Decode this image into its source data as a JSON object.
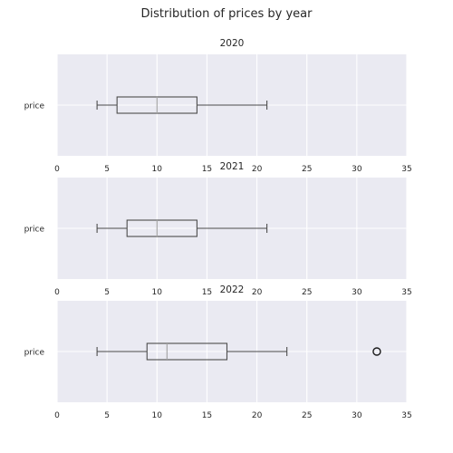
{
  "suptitle": "Distribution of prices by year",
  "colors": {
    "axes_bg": "#EAEAF2",
    "grid": "#FFFFFF",
    "box_edge": "#4C4C4C",
    "median": "#A0A0A0",
    "text": "#262626"
  },
  "chart_data": [
    {
      "type": "box",
      "title": "2020",
      "category_label": "price",
      "xlim": [
        0,
        35
      ],
      "xticks": [
        0,
        5,
        10,
        15,
        20,
        25,
        30,
        35
      ],
      "grid": true,
      "box": {
        "whisker_low": 4,
        "q1": 6,
        "median": 10,
        "q3": 14,
        "whisker_high": 21,
        "outliers": []
      }
    },
    {
      "type": "box",
      "title": "2021",
      "category_label": "price",
      "xlim": [
        0,
        35
      ],
      "xticks": [
        0,
        5,
        10,
        15,
        20,
        25,
        30,
        35
      ],
      "grid": true,
      "box": {
        "whisker_low": 4,
        "q1": 7,
        "median": 10,
        "q3": 14,
        "whisker_high": 21,
        "outliers": []
      }
    },
    {
      "type": "box",
      "title": "2022",
      "category_label": "price",
      "xlim": [
        0,
        35
      ],
      "xticks": [
        0,
        5,
        10,
        15,
        20,
        25,
        30,
        35
      ],
      "grid": true,
      "box": {
        "whisker_low": 4,
        "q1": 9,
        "median": 11,
        "q3": 17,
        "whisker_high": 23,
        "outliers": [
          32
        ]
      }
    }
  ]
}
